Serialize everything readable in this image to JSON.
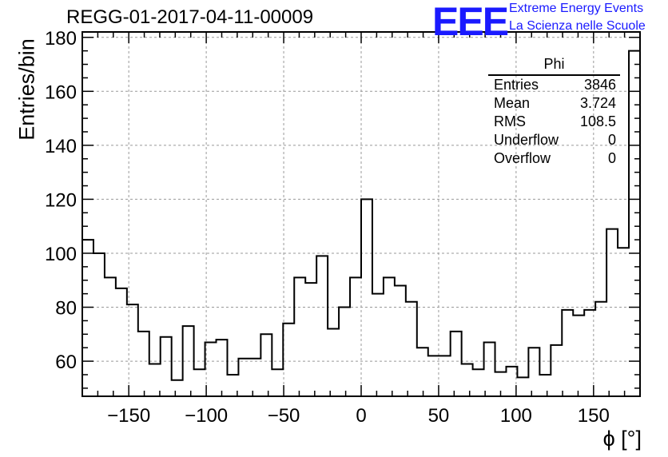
{
  "header": {
    "run_title": "REGG-01-2017-04-11-00009",
    "logo_text": "EEE",
    "brand_line1": "Extreme Energy Events",
    "brand_line2": "La Scienza nelle Scuole"
  },
  "stats": {
    "title": "Phi",
    "rows": [
      {
        "label": "Entries",
        "value": "3846"
      },
      {
        "label": "Mean",
        "value": "3.724"
      },
      {
        "label": "RMS",
        "value": "108.5"
      },
      {
        "label": "Underflow",
        "value": "0"
      },
      {
        "label": "Overflow",
        "value": "0"
      }
    ]
  },
  "colors": {
    "line": "#000000",
    "grid": "#999999",
    "brand": "#1a1aff"
  },
  "chart_data": {
    "type": "bar",
    "style": "step-histogram",
    "title": "REGG-01-2017-04-11-00009",
    "xlabel": "ϕ [°]",
    "ylabel": "Entries/bin",
    "xlim": [
      -180,
      180
    ],
    "ylim": [
      47,
      182
    ],
    "bin_width": 7.2,
    "xticks": [
      -150,
      -100,
      -50,
      0,
      50,
      100,
      150
    ],
    "xtick_labels": [
      "−150",
      "−100",
      "−50",
      "0",
      "50",
      "100",
      "150"
    ],
    "yticks": [
      60,
      80,
      100,
      120,
      140,
      160,
      180
    ],
    "ytick_labels": [
      "60",
      "80",
      "100",
      "120",
      "140",
      "160",
      "180"
    ],
    "grid": true,
    "values": [
      105,
      100,
      91,
      87,
      81,
      71,
      59,
      69,
      53,
      73,
      57,
      67,
      68,
      55,
      61,
      61,
      70,
      57,
      74,
      91,
      89,
      99,
      72,
      80,
      91,
      120,
      85,
      91,
      88,
      82,
      65,
      62,
      62,
      71,
      59,
      57,
      67,
      56,
      58,
      54,
      65,
      55,
      66,
      79,
      77,
      79,
      82,
      109,
      102,
      175
    ]
  }
}
